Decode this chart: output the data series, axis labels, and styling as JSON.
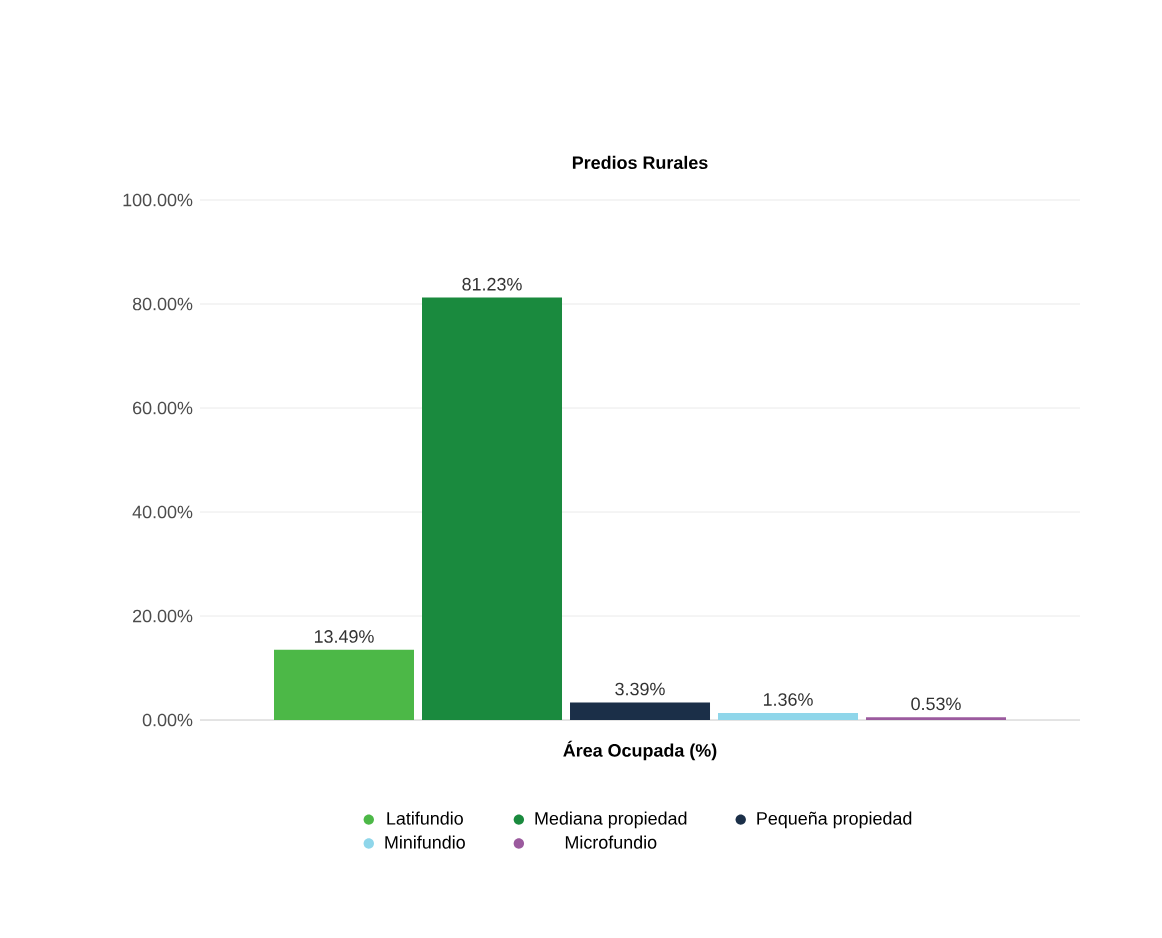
{
  "chart_data": {
    "type": "bar",
    "title": "Predios Rurales",
    "xlabel": "Área Ocupada (%)",
    "categories": [
      null
    ],
    "series": [
      {
        "name": "Latifundio",
        "color": "#4cb847",
        "values": [
          13.49
        ],
        "value_labels": [
          "13.49%"
        ]
      },
      {
        "name": "Mediana propiedad",
        "color": "#1a8a3e",
        "values": [
          81.23
        ],
        "value_labels": [
          "81.23%"
        ]
      },
      {
        "name": "Pequeña propiedad",
        "color": "#1b2f48",
        "values": [
          3.39
        ],
        "value_labels": [
          "3.39%"
        ]
      },
      {
        "name": "Minifundio",
        "color": "#8fd6ea",
        "values": [
          1.36
        ],
        "value_labels": [
          "1.36%"
        ]
      },
      {
        "name": "Microfundio",
        "color": "#9b5a9e",
        "values": [
          0.53
        ],
        "value_labels": [
          "0.53%"
        ]
      }
    ],
    "ylim": [
      0,
      100
    ],
    "yticks": [
      {
        "value": 0,
        "label": "0.00%"
      },
      {
        "value": 20,
        "label": "20.00%"
      },
      {
        "value": 40,
        "label": "40.00%"
      },
      {
        "value": 60,
        "label": "60.00%"
      },
      {
        "value": 80,
        "label": "80.00%"
      },
      {
        "value": 100,
        "label": "100.00%"
      }
    ],
    "grid": "y",
    "legend": "bottom"
  }
}
